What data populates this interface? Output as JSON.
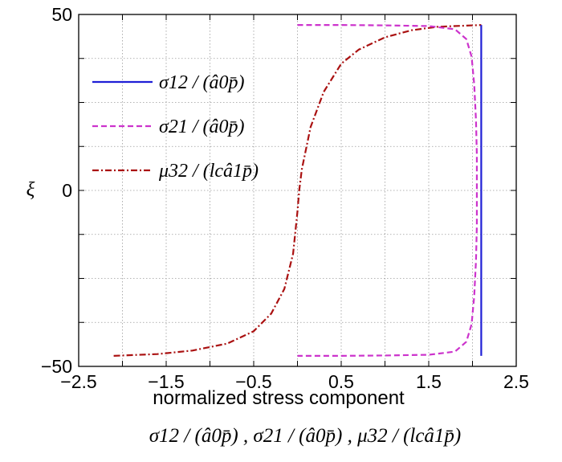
{
  "chart_data": {
    "type": "line",
    "xlabel": "normalized stress component",
    "xlabel_sub": "σ12 / (â0p̄) , σ21 / (â0p̄) , μ32 / (lcâ1p̄)",
    "ylabel": "ξ",
    "xlim": [
      -2.5,
      2.5
    ],
    "ylim": [
      -50,
      50
    ],
    "x_ticks": [
      -2.5,
      -2,
      -1.5,
      -1,
      -0.5,
      0,
      0.5,
      1,
      1.5,
      2,
      2.5
    ],
    "x_tick_labels": [
      "−2.5",
      "",
      "−1.5",
      "",
      "−0.5",
      "",
      "0.5",
      "",
      "1.5",
      "",
      "2.5"
    ],
    "y_ticks": [
      -50,
      -37.5,
      -25,
      -12.5,
      0,
      12.5,
      25,
      37.5,
      50
    ],
    "y_tick_labels": [
      "−50",
      "",
      "",
      "",
      "0",
      "",
      "",
      "",
      "50"
    ],
    "grid": true,
    "legend_position": "upper-left",
    "series": [
      {
        "name": "σ12 / (â0p̄)",
        "color": "#1f1fd6",
        "style": "solid",
        "points": [
          [
            2.1,
            -47
          ],
          [
            2.1,
            47
          ]
        ]
      },
      {
        "name": "σ21 / (â0p̄)",
        "color": "#cc33cc",
        "style": "dashed",
        "points": [
          [
            0.0,
            47
          ],
          [
            0.5,
            47
          ],
          [
            1.0,
            46.9
          ],
          [
            1.5,
            46.7
          ],
          [
            1.8,
            45.8
          ],
          [
            1.93,
            43
          ],
          [
            1.99,
            38
          ],
          [
            2.02,
            30
          ],
          [
            2.04,
            20
          ],
          [
            2.05,
            10
          ],
          [
            2.05,
            0
          ],
          [
            2.05,
            -10
          ],
          [
            2.04,
            -20
          ],
          [
            2.02,
            -30
          ],
          [
            1.99,
            -38
          ],
          [
            1.93,
            -43
          ],
          [
            1.8,
            -45.8
          ],
          [
            1.5,
            -46.7
          ],
          [
            1.0,
            -46.9
          ],
          [
            0.5,
            -47
          ],
          [
            0.0,
            -47
          ]
        ]
      },
      {
        "name": "μ32 / (lcâ1p̄)",
        "color": "#aa1111",
        "style": "dashdot",
        "points": [
          [
            -2.1,
            -47
          ],
          [
            -1.6,
            -46.5
          ],
          [
            -1.2,
            -45.5
          ],
          [
            -0.8,
            -43.5
          ],
          [
            -0.5,
            -40
          ],
          [
            -0.3,
            -35
          ],
          [
            -0.15,
            -28
          ],
          [
            -0.05,
            -18
          ],
          [
            0.0,
            -6
          ],
          [
            0.02,
            0
          ],
          [
            0.05,
            6
          ],
          [
            0.15,
            18
          ],
          [
            0.3,
            28
          ],
          [
            0.5,
            36
          ],
          [
            0.7,
            40
          ],
          [
            1.0,
            43.5
          ],
          [
            1.3,
            45.5
          ],
          [
            1.6,
            46.5
          ],
          [
            2.0,
            46.9
          ],
          [
            2.1,
            47
          ]
        ]
      }
    ]
  }
}
